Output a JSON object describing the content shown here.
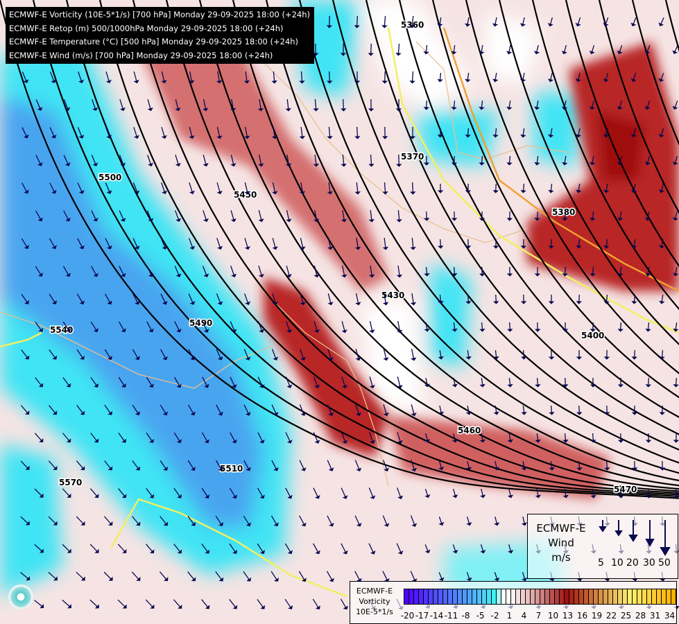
{
  "header": {
    "lines": [
      "ECMWF-E Vorticity (10E-5*1/s) [700 hPa] Monday 29-09-2025 18:00 (+24h)",
      "ECMWF-E Retop (m) 500/1000hPa Monday 29-09-2025 18:00 (+24h)",
      "ECMWF-E Temperature (°C) [500 hPa] Monday 29-09-2025 18:00 (+24h)",
      "ECMWF-E Wind (m/s) [700 hPa] Monday 29-09-2025 18:00 (+24h)"
    ]
  },
  "contour_labels": [
    "5360",
    "5370",
    "5380",
    "5400",
    "5430",
    "5450",
    "5460",
    "5470",
    "5490",
    "5500",
    "5510",
    "5540",
    "5570"
  ],
  "wind_legend": {
    "title": [
      "ECMWF-E",
      "Wind",
      "m/s"
    ],
    "values": [
      "5",
      "10",
      "20",
      "30",
      "50"
    ]
  },
  "colorbar": {
    "title": [
      "ECMWF-E",
      "Vorticity",
      "10E-5*1/s"
    ],
    "ticks": [
      "-20",
      "-17",
      "-14",
      "-11",
      "-8",
      "-5",
      "-2",
      "1",
      "4",
      "7",
      "10",
      "13",
      "16",
      "19",
      "22",
      "25",
      "28",
      "31",
      "34"
    ],
    "colors": {
      "min": "#5000ff",
      "mid_neg": "#50c0ff",
      "cyan": "#40f0f0",
      "white": "#ffffff",
      "pink": "#e8c0c0",
      "red": "#a01010",
      "orange": "#d08040",
      "yellow": "#fff070",
      "max": "#ffb000"
    }
  },
  "colors": {
    "contour": "#000000",
    "wind_arrow": "#0a0a50",
    "border": "#e8c090",
    "cyan": "#40e8f0",
    "blue": "#4aa8f0",
    "red": "#b02020",
    "pink": "#f0d4d4"
  }
}
